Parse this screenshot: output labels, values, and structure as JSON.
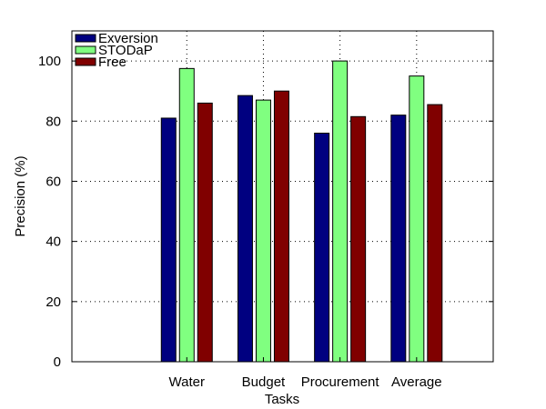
{
  "chart_data": {
    "type": "bar",
    "categories": [
      "Water",
      "Budget",
      "Procurement",
      "Average"
    ],
    "series": [
      {
        "name": "Exversion",
        "color": "#000080",
        "values": [
          81,
          88.5,
          76,
          82
        ]
      },
      {
        "name": "STODaP",
        "color": "#80ff80",
        "values": [
          97.5,
          87,
          100,
          95
        ]
      },
      {
        "name": "Free",
        "color": "#800000",
        "values": [
          86,
          90,
          81.5,
          85.5
        ]
      }
    ],
    "title": "",
    "xlabel": "Tasks",
    "ylabel": "Precision (%)",
    "ylim": [
      0,
      110
    ],
    "yticks": [
      0,
      20,
      40,
      60,
      80,
      100
    ],
    "grid": true,
    "legend_position": "top-left"
  }
}
